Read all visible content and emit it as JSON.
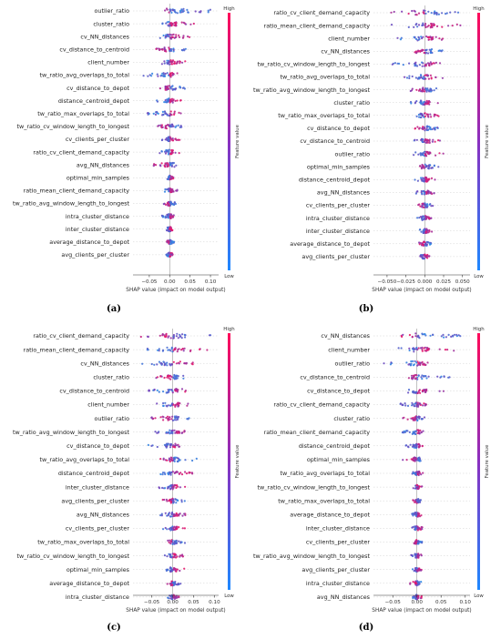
{
  "colors": {
    "low": "#2e8ae6",
    "mid": "#7a3fb8",
    "high": "#ee1466"
  },
  "chart_data": [
    {
      "type": "scatter",
      "subtype": "shap_beeswarm",
      "panel_label": "(a)",
      "xlabel": "SHAP value (impact on model output)",
      "xlim": [
        -0.09,
        0.12
      ],
      "xticks": [
        -0.05,
        0.0,
        0.05,
        0.1
      ],
      "xtick_labels": [
        "−0.05",
        "0.00",
        "0.05",
        "0.10"
      ],
      "colorbar": {
        "label": "Feature value",
        "high": "High",
        "low": "Low"
      },
      "features": [
        {
          "name": "outlier_ratio",
          "lo": -0.025,
          "hi": 0.12
        },
        {
          "name": "cluster_ratio",
          "lo": -0.02,
          "hi": 0.06
        },
        {
          "name": "cv_NN_distances",
          "lo": -0.03,
          "hi": 0.05
        },
        {
          "name": "cv_distance_to_centroid",
          "lo": -0.035,
          "hi": 0.045
        },
        {
          "name": "client_number",
          "lo": -0.02,
          "hi": 0.04
        },
        {
          "name": "tw_ratio_avg_overlaps_to_total",
          "lo": -0.07,
          "hi": 0.03
        },
        {
          "name": "cv_distance_to_depot",
          "lo": -0.03,
          "hi": 0.04
        },
        {
          "name": "distance_centroid_depot",
          "lo": -0.035,
          "hi": 0.03
        },
        {
          "name": "tw_ratio_max_overlaps_to_total",
          "lo": -0.06,
          "hi": 0.03
        },
        {
          "name": "tw_ratio_cv_window_length_to_longest",
          "lo": -0.03,
          "hi": 0.03
        },
        {
          "name": "cv_clients_per_cluster",
          "lo": -0.02,
          "hi": 0.03
        },
        {
          "name": "ratio_cv_client_demand_capacity",
          "lo": -0.025,
          "hi": 0.025
        },
        {
          "name": "avg_NN_distances",
          "lo": -0.04,
          "hi": 0.02
        },
        {
          "name": "optimal_min_samples",
          "lo": -0.01,
          "hi": 0.01
        },
        {
          "name": "ratio_mean_client_demand_capacity",
          "lo": -0.015,
          "hi": 0.02
        },
        {
          "name": "tw_ratio_avg_window_length_to_longest",
          "lo": -0.015,
          "hi": 0.015
        },
        {
          "name": "intra_cluster_distance",
          "lo": -0.02,
          "hi": 0.01
        },
        {
          "name": "inter_cluster_distance",
          "lo": -0.01,
          "hi": 0.01
        },
        {
          "name": "average_distance_to_depot",
          "lo": -0.008,
          "hi": 0.012
        },
        {
          "name": "avg_clients_per_cluster",
          "lo": -0.01,
          "hi": 0.008
        }
      ]
    },
    {
      "type": "scatter",
      "subtype": "shap_beeswarm",
      "panel_label": "(b)",
      "xlabel": "SHAP value (impact on model output)",
      "xlim": [
        -0.068,
        0.06
      ],
      "xticks": [
        -0.05,
        -0.025,
        0.0,
        0.025,
        0.05
      ],
      "xtick_labels": [
        "−0.050",
        "−0.025",
        "0.000",
        "0.025",
        "0.050"
      ],
      "colorbar": {
        "label": "Feature value",
        "high": "High",
        "low": "Low"
      },
      "features": [
        {
          "name": "ratio_cv_client_demand_capacity",
          "lo": -0.045,
          "hi": 0.05
        },
        {
          "name": "ratio_mean_client_demand_capacity",
          "lo": -0.045,
          "hi": 0.048
        },
        {
          "name": "client_number",
          "lo": -0.04,
          "hi": 0.03
        },
        {
          "name": "cv_NN_distances",
          "lo": -0.035,
          "hi": 0.03
        },
        {
          "name": "tw_ratio_cv_window_length_to_longest",
          "lo": -0.045,
          "hi": 0.025
        },
        {
          "name": "tw_ratio_avg_overlaps_to_total",
          "lo": -0.03,
          "hi": 0.025
        },
        {
          "name": "tw_ratio_avg_window_length_to_longest",
          "lo": -0.02,
          "hi": 0.025
        },
        {
          "name": "cluster_ratio",
          "lo": -0.02,
          "hi": 0.02
        },
        {
          "name": "tw_ratio_max_overlaps_to_total",
          "lo": -0.015,
          "hi": 0.02
        },
        {
          "name": "cv_distance_to_depot",
          "lo": -0.015,
          "hi": 0.02
        },
        {
          "name": "cv_distance_to_centroid",
          "lo": -0.015,
          "hi": 0.02
        },
        {
          "name": "outlier_ratio",
          "lo": -0.015,
          "hi": 0.025
        },
        {
          "name": "optimal_min_samples",
          "lo": -0.012,
          "hi": 0.02
        },
        {
          "name": "distance_centroid_depot",
          "lo": -0.015,
          "hi": 0.015
        },
        {
          "name": "avg_NN_distances",
          "lo": -0.012,
          "hi": 0.015
        },
        {
          "name": "cv_clients_per_cluster",
          "lo": -0.01,
          "hi": 0.012
        },
        {
          "name": "intra_cluster_distance",
          "lo": -0.01,
          "hi": 0.012
        },
        {
          "name": "inter_cluster_distance",
          "lo": -0.008,
          "hi": 0.01
        },
        {
          "name": "average_distance_to_depot",
          "lo": -0.008,
          "hi": 0.01
        },
        {
          "name": "avg_clients_per_cluster",
          "lo": -0.008,
          "hi": 0.01
        }
      ]
    },
    {
      "type": "scatter",
      "subtype": "shap_beeswarm",
      "panel_label": "(c)",
      "xlabel": "SHAP value (impact on model output)",
      "xlim": [
        -0.095,
        0.11
      ],
      "xticks": [
        -0.05,
        0.0,
        0.05,
        0.1
      ],
      "xtick_labels": [
        "−0.05",
        "0.00",
        "0.05",
        "0.10"
      ],
      "colorbar": {
        "label": "Feature value",
        "high": "High",
        "low": "Low"
      },
      "features": [
        {
          "name": "ratio_cv_client_demand_capacity",
          "lo": -0.085,
          "hi": 0.095
        },
        {
          "name": "ratio_mean_client_demand_capacity",
          "lo": -0.07,
          "hi": 0.085
        },
        {
          "name": "cv_NN_distances",
          "lo": -0.08,
          "hi": 0.05
        },
        {
          "name": "cluster_ratio",
          "lo": -0.04,
          "hi": 0.03
        },
        {
          "name": "cv_distance_to_centroid",
          "lo": -0.06,
          "hi": 0.035
        },
        {
          "name": "client_number",
          "lo": -0.04,
          "hi": 0.04
        },
        {
          "name": "outlier_ratio",
          "lo": -0.055,
          "hi": 0.04
        },
        {
          "name": "tw_ratio_avg_window_length_to_longest",
          "lo": -0.05,
          "hi": 0.04
        },
        {
          "name": "cv_distance_to_depot",
          "lo": -0.06,
          "hi": 0.04
        },
        {
          "name": "tw_ratio_avg_overlaps_to_total",
          "lo": -0.03,
          "hi": 0.06
        },
        {
          "name": "distance_centroid_depot",
          "lo": -0.03,
          "hi": 0.05
        },
        {
          "name": "inter_cluster_distance",
          "lo": -0.035,
          "hi": 0.03
        },
        {
          "name": "avg_clients_per_cluster",
          "lo": -0.025,
          "hi": 0.035
        },
        {
          "name": "avg_NN_distances",
          "lo": -0.03,
          "hi": 0.04
        },
        {
          "name": "cv_clients_per_cluster",
          "lo": -0.025,
          "hi": 0.03
        },
        {
          "name": "tw_ratio_max_overlaps_to_total",
          "lo": -0.02,
          "hi": 0.03
        },
        {
          "name": "tw_ratio_cv_window_length_to_longest",
          "lo": -0.02,
          "hi": 0.025
        },
        {
          "name": "optimal_min_samples",
          "lo": -0.015,
          "hi": 0.03
        },
        {
          "name": "average_distance_to_depot",
          "lo": -0.015,
          "hi": 0.02
        },
        {
          "name": "intra_cluster_distance",
          "lo": -0.015,
          "hi": 0.015
        }
      ]
    },
    {
      "type": "scatter",
      "subtype": "shap_beeswarm",
      "panel_label": "(d)",
      "xlabel": "SHAP value (impact on model output)",
      "xlim": [
        -0.09,
        0.11
      ],
      "xticks": [
        -0.05,
        0.0,
        0.05,
        0.1
      ],
      "xtick_labels": [
        "−0.05",
        "0.00",
        "0.05",
        "0.10"
      ],
      "colorbar": {
        "label": "Feature value",
        "high": "High",
        "low": "Low"
      },
      "features": [
        {
          "name": "cv_NN_distances",
          "lo": -0.035,
          "hi": 0.09
        },
        {
          "name": "client_number",
          "lo": -0.04,
          "hi": 0.085
        },
        {
          "name": "outlier_ratio",
          "lo": -0.07,
          "hi": 0.045
        },
        {
          "name": "cv_distance_to_centroid",
          "lo": -0.025,
          "hi": 0.07
        },
        {
          "name": "cv_distance_to_depot",
          "lo": -0.02,
          "hi": 0.065
        },
        {
          "name": "ratio_cv_client_demand_capacity",
          "lo": -0.035,
          "hi": 0.02
        },
        {
          "name": "cluster_ratio",
          "lo": -0.03,
          "hi": 0.02
        },
        {
          "name": "ratio_mean_client_demand_capacity",
          "lo": -0.03,
          "hi": 0.015
        },
        {
          "name": "distance_centroid_depot",
          "lo": -0.025,
          "hi": 0.015
        },
        {
          "name": "optimal_min_samples",
          "lo": -0.03,
          "hi": 0.01
        },
        {
          "name": "tw_ratio_avg_overlaps_to_total",
          "lo": -0.01,
          "hi": 0.015
        },
        {
          "name": "tw_ratio_cv_window_length_to_longest",
          "lo": -0.01,
          "hi": 0.012
        },
        {
          "name": "tw_ratio_max_overlaps_to_total",
          "lo": -0.01,
          "hi": 0.012
        },
        {
          "name": "average_distance_to_depot",
          "lo": -0.01,
          "hi": 0.015
        },
        {
          "name": "inter_cluster_distance",
          "lo": -0.01,
          "hi": 0.012
        },
        {
          "name": "cv_clients_per_cluster",
          "lo": -0.01,
          "hi": 0.012
        },
        {
          "name": "tw_ratio_avg_window_length_to_longest",
          "lo": -0.012,
          "hi": 0.01
        },
        {
          "name": "avg_clients_per_cluster",
          "lo": -0.01,
          "hi": 0.01
        },
        {
          "name": "intra_cluster_distance",
          "lo": -0.015,
          "hi": 0.01
        },
        {
          "name": "avg_NN_distances",
          "lo": -0.01,
          "hi": 0.01
        }
      ]
    }
  ]
}
